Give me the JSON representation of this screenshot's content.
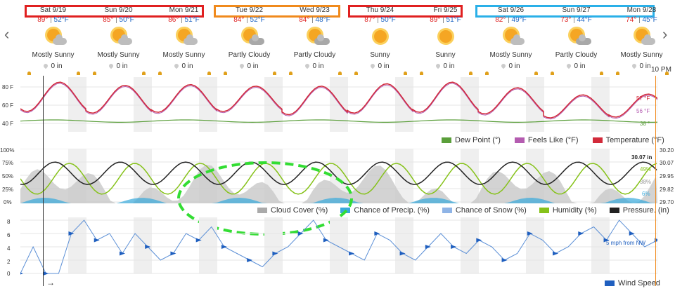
{
  "nav": {
    "prev": "‹",
    "next": "›"
  },
  "days": [
    {
      "date": "Sat 9/19",
      "hi": "89°",
      "lo": "52°F",
      "cond": "Mostly Sunny",
      "precip": "0 in",
      "icon": "mostly-sunny-icon"
    },
    {
      "date": "Sun 9/20",
      "hi": "85°",
      "lo": "50°F",
      "cond": "Mostly Sunny",
      "precip": "0 in",
      "icon": "mostly-sunny-icon"
    },
    {
      "date": "Mon 9/21",
      "hi": "86°",
      "lo": "51°F",
      "cond": "Mostly Sunny",
      "precip": "0 in",
      "icon": "mostly-sunny-icon"
    },
    {
      "date": "Tue 9/22",
      "hi": "84°",
      "lo": "52°F",
      "cond": "Partly Cloudy",
      "precip": "0 in",
      "icon": "partly-cloudy-icon"
    },
    {
      "date": "Wed 9/23",
      "hi": "84°",
      "lo": "48°F",
      "cond": "Partly Cloudy",
      "precip": "0 in",
      "icon": "partly-cloudy-icon"
    },
    {
      "date": "Thu 9/24",
      "hi": "87°",
      "lo": "50°F",
      "cond": "Sunny",
      "precip": "0 in",
      "icon": "sunny-icon"
    },
    {
      "date": "Fri 9/25",
      "hi": "89°",
      "lo": "51°F",
      "cond": "Sunny",
      "precip": "0 in",
      "icon": "sunny-icon"
    },
    {
      "date": "Sat 9/26",
      "hi": "82°",
      "lo": "49°F",
      "cond": "Mostly Sunny",
      "precip": "0 in",
      "icon": "mostly-sunny-icon"
    },
    {
      "date": "Sun 9/27",
      "hi": "73°",
      "lo": "44°F",
      "cond": "Partly Cloudy",
      "precip": "0 in",
      "icon": "partly-cloudy-icon"
    },
    {
      "date": "Mon 9/28",
      "hi": "74°",
      "lo": "45°F",
      "cond": "Mostly Sunny",
      "precip": "0 in",
      "icon": "mostly-sunny-icon"
    }
  ],
  "sep": "|",
  "time_label": "10 PM",
  "colors": {
    "red_box": "#e02020",
    "orange_box": "#f08a1c",
    "blue_box": "#2ab0e8",
    "annotation": "#33dd33"
  },
  "chart1": {
    "y_ticks": [
      "80 F",
      "60 F",
      "40 F"
    ],
    "end_labels": {
      "temp": "57 °F",
      "feels": "56 °F",
      "dew": "38 °"
    },
    "legend": [
      {
        "label": "Dew Point (°)",
        "color": "#5a9e3a"
      },
      {
        "label": "Feels Like (°F)",
        "color": "#b45cb0"
      },
      {
        "label": "Temperature (°F)",
        "color": "#d22a3a"
      }
    ]
  },
  "chart2": {
    "y_ticks_left": [
      "100%",
      "75%",
      "50%",
      "25%",
      "0%"
    ],
    "y_ticks_right": [
      "30.20",
      "30.07",
      "29.95",
      "29.82",
      "29.70"
    ],
    "end_labels": {
      "pressure": "30.07 in",
      "humidity": "49%",
      "cloud": "38%",
      "precip": "6%"
    },
    "legend": [
      {
        "label": "Cloud Cover (%)",
        "color": "#aaaaaa"
      },
      {
        "label": "Chance of Precip. (%)",
        "color": "#38a9dc"
      },
      {
        "label": "Chance of Snow (%)",
        "color": "#8fb4e6"
      },
      {
        "label": "Humidity (%)",
        "color": "#86c21a"
      },
      {
        "label": "Pressure. (in)",
        "color": "#222222"
      }
    ]
  },
  "chart3": {
    "y_ticks": [
      "8",
      "6",
      "4",
      "2",
      "0"
    ],
    "end_label": "5 mph from NW",
    "legend": [
      {
        "label": "Wind Speed",
        "color": "#1f5fbf"
      }
    ],
    "arrow": "→"
  },
  "chart_data": {
    "type": "line",
    "temperature_daily": {
      "hi": [
        89,
        85,
        86,
        84,
        84,
        87,
        89,
        82,
        73,
        74
      ],
      "lo": [
        52,
        50,
        51,
        52,
        48,
        50,
        51,
        49,
        44,
        45
      ]
    },
    "dew_point_approx": 40,
    "ylim_temp": [
      30,
      90
    ],
    "wind_speed_mph_approx": [
      0,
      4,
      0,
      0,
      6,
      8,
      5,
      6,
      3,
      6,
      4,
      2,
      3,
      6,
      5,
      7,
      4,
      3,
      2,
      1,
      3,
      4,
      6,
      8,
      5,
      4,
      3,
      2,
      6,
      5,
      3,
      2,
      4,
      6,
      4,
      3,
      5,
      4,
      2,
      3,
      6,
      5,
      3,
      4,
      6,
      7,
      5,
      8,
      6,
      4,
      5
    ]
  }
}
